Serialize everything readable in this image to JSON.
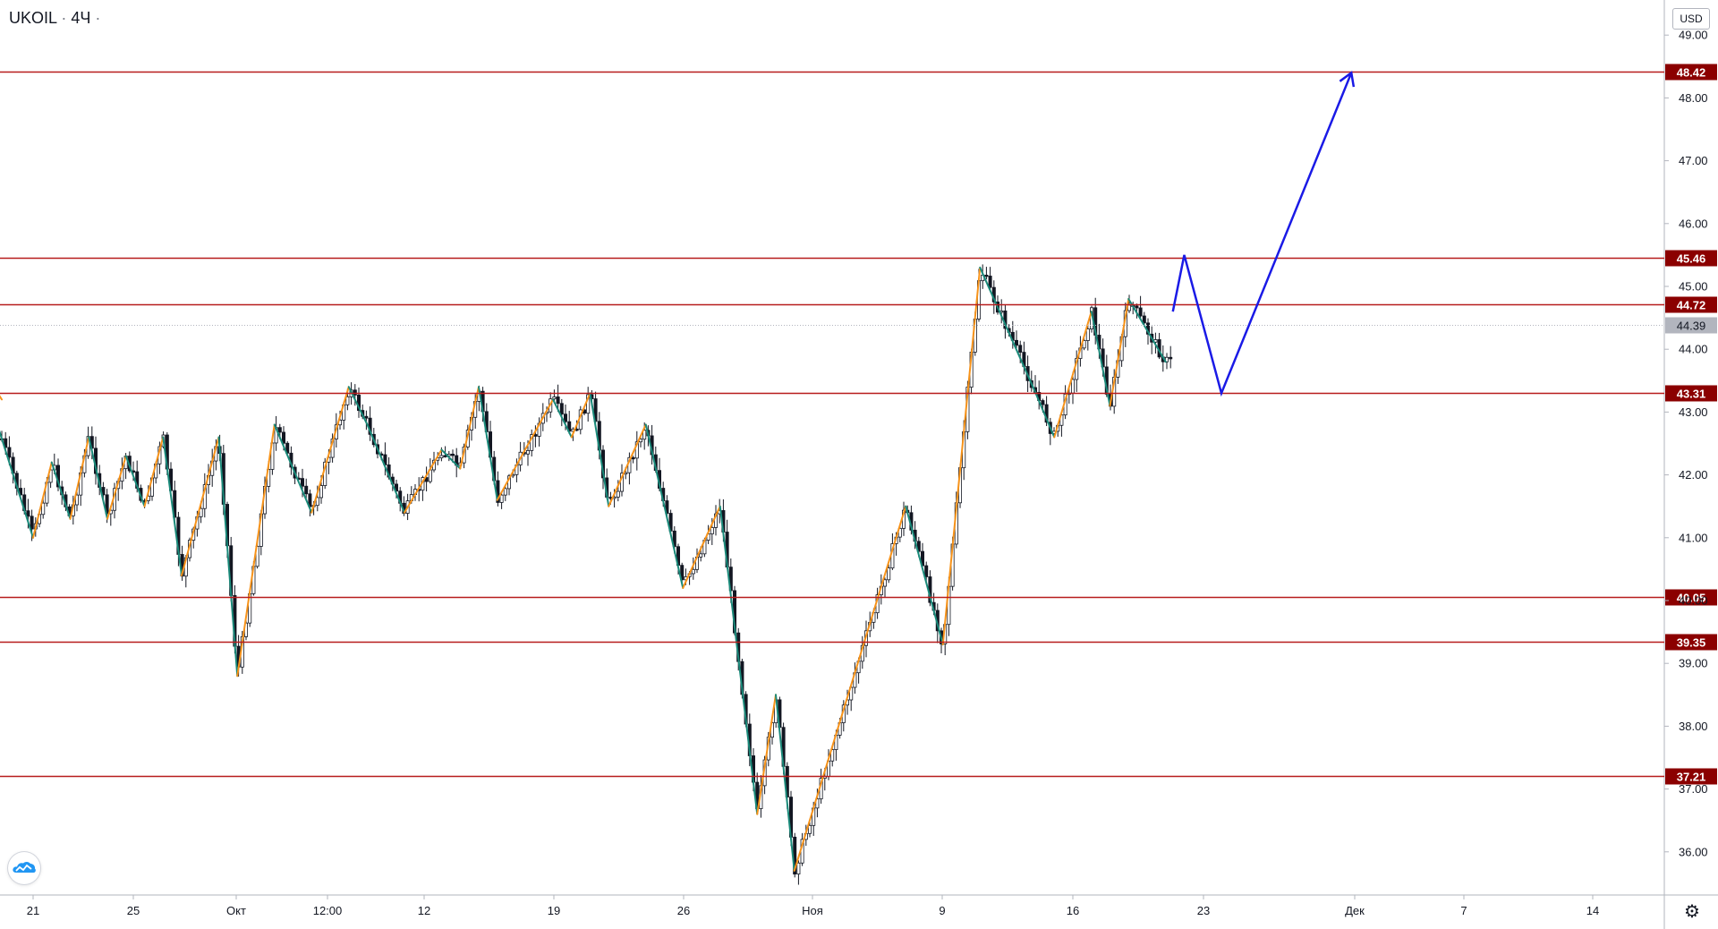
{
  "header": {
    "symbol": "UKOIL",
    "separator": "·",
    "interval": "4Ч",
    "dot": "·"
  },
  "price_axis": {
    "currency": "USD"
  },
  "colors": {
    "level_line": "#b71c1c",
    "level_label_bg": "#8b0000",
    "current_label_bg": "#b2b5be",
    "zigzag_up": "#f7931a",
    "zigzag_down": "#1a8a7a",
    "forecast": "#1a1ae6",
    "candle": "#131722"
  },
  "chart_data": {
    "type": "candlestick",
    "symbol": "UKOIL",
    "interval": "4Ч",
    "ylim": [
      35.3,
      49.4
    ],
    "yticks": [
      "49.00",
      "48.00",
      "47.00",
      "46.00",
      "45.00",
      "44.00",
      "43.00",
      "42.00",
      "41.00",
      "40.00",
      "39.00",
      "38.00",
      "37.00",
      "36.00"
    ],
    "x_ticks": [
      "21",
      "25",
      "Окт",
      "12:00",
      "12",
      "19",
      "26",
      "Ноя",
      "9",
      "16",
      "23",
      "Дек",
      "7",
      "14"
    ],
    "levels": [
      {
        "label": "48.42",
        "value": 48.42
      },
      {
        "label": "45.46",
        "value": 45.46
      },
      {
        "label": "44.72",
        "value": 44.72
      },
      {
        "label": "43.31",
        "value": 43.31
      },
      {
        "label": "40.05",
        "value": 40.05
      },
      {
        "label": "39.35",
        "value": 39.35
      },
      {
        "label": "37.21",
        "value": 37.21
      }
    ],
    "current_price": {
      "label": "44.39",
      "value": 44.39
    },
    "zigzag_pivots": [
      {
        "date": "Sep 17",
        "price": 43.2
      },
      {
        "date": "Sep 18",
        "price": 43.8
      },
      {
        "date": "Sep 21",
        "price": 41.0
      },
      {
        "date": "Sep 22",
        "price": 42.2
      },
      {
        "date": "Sep 23",
        "price": 41.3
      },
      {
        "date": "Sep 24",
        "price": 42.6
      },
      {
        "date": "Sep 25",
        "price": 41.3
      },
      {
        "date": "Sep 26",
        "price": 42.3
      },
      {
        "date": "Sep 27",
        "price": 41.5
      },
      {
        "date": "Sep 28",
        "price": 42.6
      },
      {
        "date": "Sep 29",
        "price": 40.4
      },
      {
        "date": "Oct 1",
        "price": 42.6
      },
      {
        "date": "Oct 2",
        "price": 38.8
      },
      {
        "date": "Oct 4",
        "price": 42.8
      },
      {
        "date": "Oct 6",
        "price": 41.4
      },
      {
        "date": "Oct 8",
        "price": 43.4
      },
      {
        "date": "Oct 9",
        "price": 42.8
      },
      {
        "date": "Oct 11",
        "price": 41.4
      },
      {
        "date": "Oct 13",
        "price": 42.4
      },
      {
        "date": "Oct 14",
        "price": 42.1
      },
      {
        "date": "Oct 15",
        "price": 43.4
      },
      {
        "date": "Oct 16",
        "price": 41.6
      },
      {
        "date": "Oct 19",
        "price": 43.2
      },
      {
        "date": "Oct 20",
        "price": 42.6
      },
      {
        "date": "Oct 21",
        "price": 43.3
      },
      {
        "date": "Oct 22",
        "price": 41.5
      },
      {
        "date": "Oct 24",
        "price": 42.8
      },
      {
        "date": "Oct 26",
        "price": 40.2
      },
      {
        "date": "Oct 28",
        "price": 41.5
      },
      {
        "date": "Oct 30",
        "price": 36.6
      },
      {
        "date": "Oct 31",
        "price": 38.5
      },
      {
        "date": "Nov 1",
        "price": 35.7
      },
      {
        "date": "Nov 7",
        "price": 41.5
      },
      {
        "date": "Nov 9",
        "price": 39.3
      },
      {
        "date": "Nov 11",
        "price": 45.3
      },
      {
        "date": "Nov 14",
        "price": 43.3
      },
      {
        "date": "Nov 15",
        "price": 42.6
      },
      {
        "date": "Nov 17",
        "price": 44.6
      },
      {
        "date": "Nov 18",
        "price": 43.1
      },
      {
        "date": "Nov 19",
        "price": 44.8
      },
      {
        "date": "Nov 21",
        "price": 43.8
      }
    ],
    "forecast_path": [
      {
        "date": "Nov 21",
        "price": 44.6
      },
      {
        "date": "Nov 22",
        "price": 45.5
      },
      {
        "date": "Nov 24",
        "price": 43.3
      },
      {
        "date": "Dec 1",
        "price": 48.4
      }
    ]
  }
}
